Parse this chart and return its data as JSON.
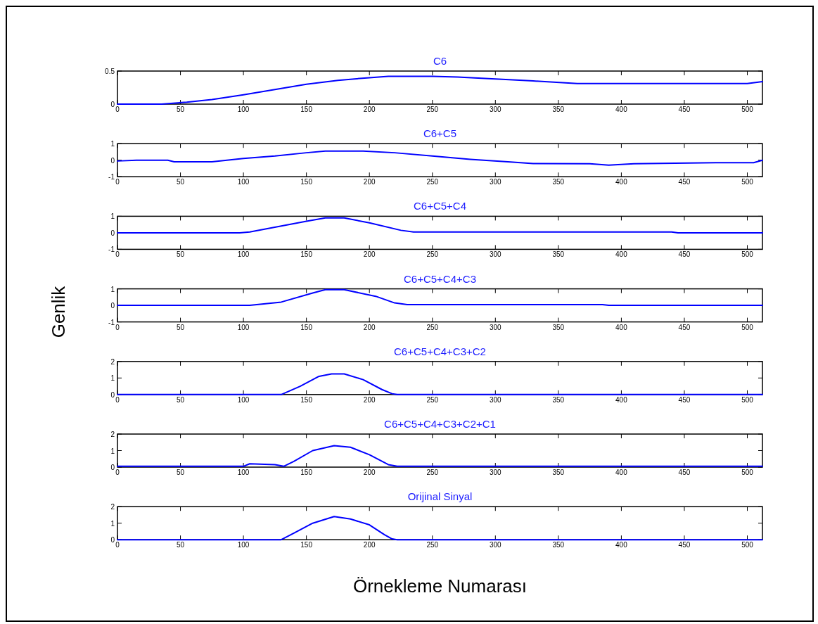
{
  "chart_data": [
    {
      "type": "line",
      "title": "C6",
      "xlim": [
        0,
        512
      ],
      "xticks": [
        0,
        50,
        100,
        150,
        200,
        250,
        300,
        350,
        400,
        450,
        500
      ],
      "ylim": [
        0,
        0.5
      ],
      "yticks": [
        0,
        0.5
      ],
      "grid": false,
      "x": [
        0,
        35,
        55,
        75,
        100,
        125,
        150,
        175,
        200,
        215,
        250,
        270,
        300,
        330,
        365,
        400,
        500,
        512
      ],
      "series": [
        {
          "color": "#0000ff",
          "values": [
            0,
            0,
            0.03,
            0.07,
            0.14,
            0.22,
            0.3,
            0.36,
            0.4,
            0.42,
            0.42,
            0.41,
            0.38,
            0.35,
            0.31,
            0.31,
            0.31,
            0.34
          ]
        }
      ]
    },
    {
      "type": "line",
      "title": "C6+C5",
      "xlim": [
        0,
        512
      ],
      "xticks": [
        0,
        50,
        100,
        150,
        200,
        250,
        300,
        350,
        400,
        450,
        500
      ],
      "ylim": [
        -1,
        1
      ],
      "yticks": [
        -1,
        0,
        1
      ],
      "grid": false,
      "x": [
        0,
        15,
        40,
        45,
        75,
        100,
        125,
        150,
        165,
        195,
        220,
        250,
        280,
        310,
        330,
        375,
        390,
        410,
        480,
        505,
        512
      ],
      "series": [
        {
          "color": "#0000ff",
          "values": [
            -0.05,
            0,
            0,
            -0.1,
            -0.1,
            0.1,
            0.25,
            0.45,
            0.55,
            0.55,
            0.45,
            0.25,
            0.05,
            -0.1,
            -0.2,
            -0.22,
            -0.3,
            -0.22,
            -0.15,
            -0.15,
            0
          ]
        }
      ]
    },
    {
      "type": "line",
      "title": "C6+C5+C4",
      "xlim": [
        0,
        512
      ],
      "xticks": [
        0,
        50,
        100,
        150,
        200,
        250,
        300,
        350,
        400,
        450,
        500
      ],
      "ylim": [
        -1,
        1
      ],
      "yticks": [
        -1,
        0,
        1
      ],
      "grid": false,
      "ylabel": "Genlik",
      "x": [
        0,
        97,
        105,
        150,
        165,
        180,
        200,
        225,
        235,
        440,
        445,
        512
      ],
      "series": [
        {
          "color": "#0000ff",
          "values": [
            0,
            0,
            0.05,
            0.7,
            0.9,
            0.9,
            0.6,
            0.15,
            0.05,
            0.05,
            0,
            0
          ]
        }
      ]
    },
    {
      "type": "line",
      "title": "C6+C5+C4+C3",
      "xlim": [
        0,
        512
      ],
      "xticks": [
        0,
        50,
        100,
        150,
        200,
        250,
        300,
        350,
        400,
        450,
        500
      ],
      "ylim": [
        -1,
        1
      ],
      "yticks": [
        -1,
        0,
        1
      ],
      "grid": false,
      "x": [
        0,
        105,
        130,
        155,
        165,
        180,
        205,
        220,
        230,
        385,
        390,
        512
      ],
      "series": [
        {
          "color": "#0000ff",
          "values": [
            0,
            0,
            0.2,
            0.75,
            0.95,
            0.95,
            0.55,
            0.15,
            0.05,
            0.05,
            0,
            0
          ]
        }
      ]
    },
    {
      "type": "line",
      "title": "C6+C5+C4+C3+C2",
      "xlim": [
        0,
        512
      ],
      "xticks": [
        0,
        50,
        100,
        150,
        200,
        250,
        300,
        350,
        400,
        450,
        500
      ],
      "ylim": [
        0,
        2
      ],
      "yticks": [
        0,
        1,
        2
      ],
      "grid": false,
      "x": [
        0,
        130,
        145,
        160,
        170,
        180,
        195,
        210,
        218,
        222,
        512
      ],
      "series": [
        {
          "color": "#0000ff",
          "values": [
            0,
            0,
            0.5,
            1.1,
            1.25,
            1.25,
            0.9,
            0.3,
            0.05,
            0,
            0
          ]
        }
      ]
    },
    {
      "type": "line",
      "title": "C6+C5+C4+C3+C2+C1",
      "xlim": [
        0,
        512
      ],
      "xticks": [
        0,
        50,
        100,
        150,
        200,
        250,
        300,
        350,
        400,
        450,
        500
      ],
      "ylim": [
        0,
        2
      ],
      "yticks": [
        0,
        1,
        2
      ],
      "grid": false,
      "x": [
        0,
        100,
        105,
        125,
        132,
        140,
        155,
        172,
        185,
        200,
        215,
        222,
        512
      ],
      "series": [
        {
          "color": "#0000ff",
          "values": [
            0.05,
            0.05,
            0.2,
            0.15,
            0.05,
            0.35,
            1.0,
            1.3,
            1.2,
            0.75,
            0.15,
            0.05,
            0.05
          ]
        }
      ]
    },
    {
      "type": "line",
      "title": "Orijinal Sinyal",
      "xlim": [
        0,
        512
      ],
      "xticks": [
        0,
        50,
        100,
        150,
        200,
        250,
        300,
        350,
        400,
        450,
        500
      ],
      "ylim": [
        0,
        2
      ],
      "yticks": [
        0,
        1,
        2
      ],
      "grid": false,
      "xlabel": "Örnekleme Numarası",
      "x": [
        0,
        130,
        140,
        155,
        172,
        185,
        200,
        212,
        218,
        222,
        512
      ],
      "series": [
        {
          "color": "#0000ff",
          "values": [
            0,
            0,
            0.4,
            1.0,
            1.4,
            1.25,
            0.9,
            0.3,
            0.05,
            0,
            0
          ]
        }
      ]
    }
  ]
}
